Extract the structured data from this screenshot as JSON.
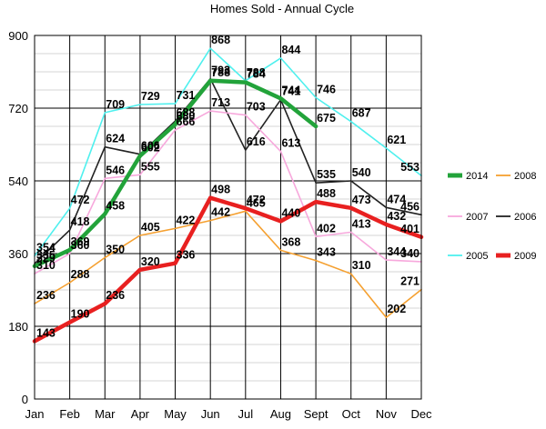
{
  "chart_data": {
    "type": "line",
    "title": "Homes Sold - Annual Cycle",
    "xlabel": "",
    "ylabel": "",
    "categories": [
      "Jan",
      "Feb",
      "Mar",
      "Apr",
      "May",
      "Jun",
      "Jul",
      "Aug",
      "Sept",
      "Oct",
      "Nov",
      "Dec"
    ],
    "ylim": [
      0,
      900
    ],
    "yticks": [
      0,
      180,
      360,
      540,
      720,
      900
    ],
    "grid": true,
    "legend_position": "right",
    "series": [
      {
        "name": "2014",
        "color": "#22a33a",
        "values": [
          329,
          369,
          458,
          602,
          680,
          788,
          784,
          744,
          675,
          null,
          null,
          null
        ]
      },
      {
        "name": "2008",
        "color": "#f5a030",
        "values": [
          236,
          288,
          350,
          405,
          422,
          442,
          465,
          368,
          343,
          310,
          202,
          271
        ]
      },
      {
        "name": "2007",
        "color": "#f7a8dc",
        "values": [
          310,
          360,
          546,
          555,
          666,
          713,
          703,
          613,
          402,
          413,
          344,
          340
        ]
      },
      {
        "name": "2006",
        "color": "#222222",
        "values": [
          335,
          418,
          624,
          606,
          688,
          793,
          616,
          741,
          535,
          540,
          474,
          456
        ]
      },
      {
        "name": "2005",
        "color": "#4ff0ee",
        "values": [
          354,
          472,
          709,
          729,
          731,
          868,
          788,
          844,
          746,
          687,
          621,
          553
        ]
      },
      {
        "name": "2009",
        "color": "#e82020",
        "values": [
          143,
          190,
          236,
          320,
          336,
          498,
          472,
          440,
          488,
          473,
          432,
          401
        ]
      }
    ]
  }
}
